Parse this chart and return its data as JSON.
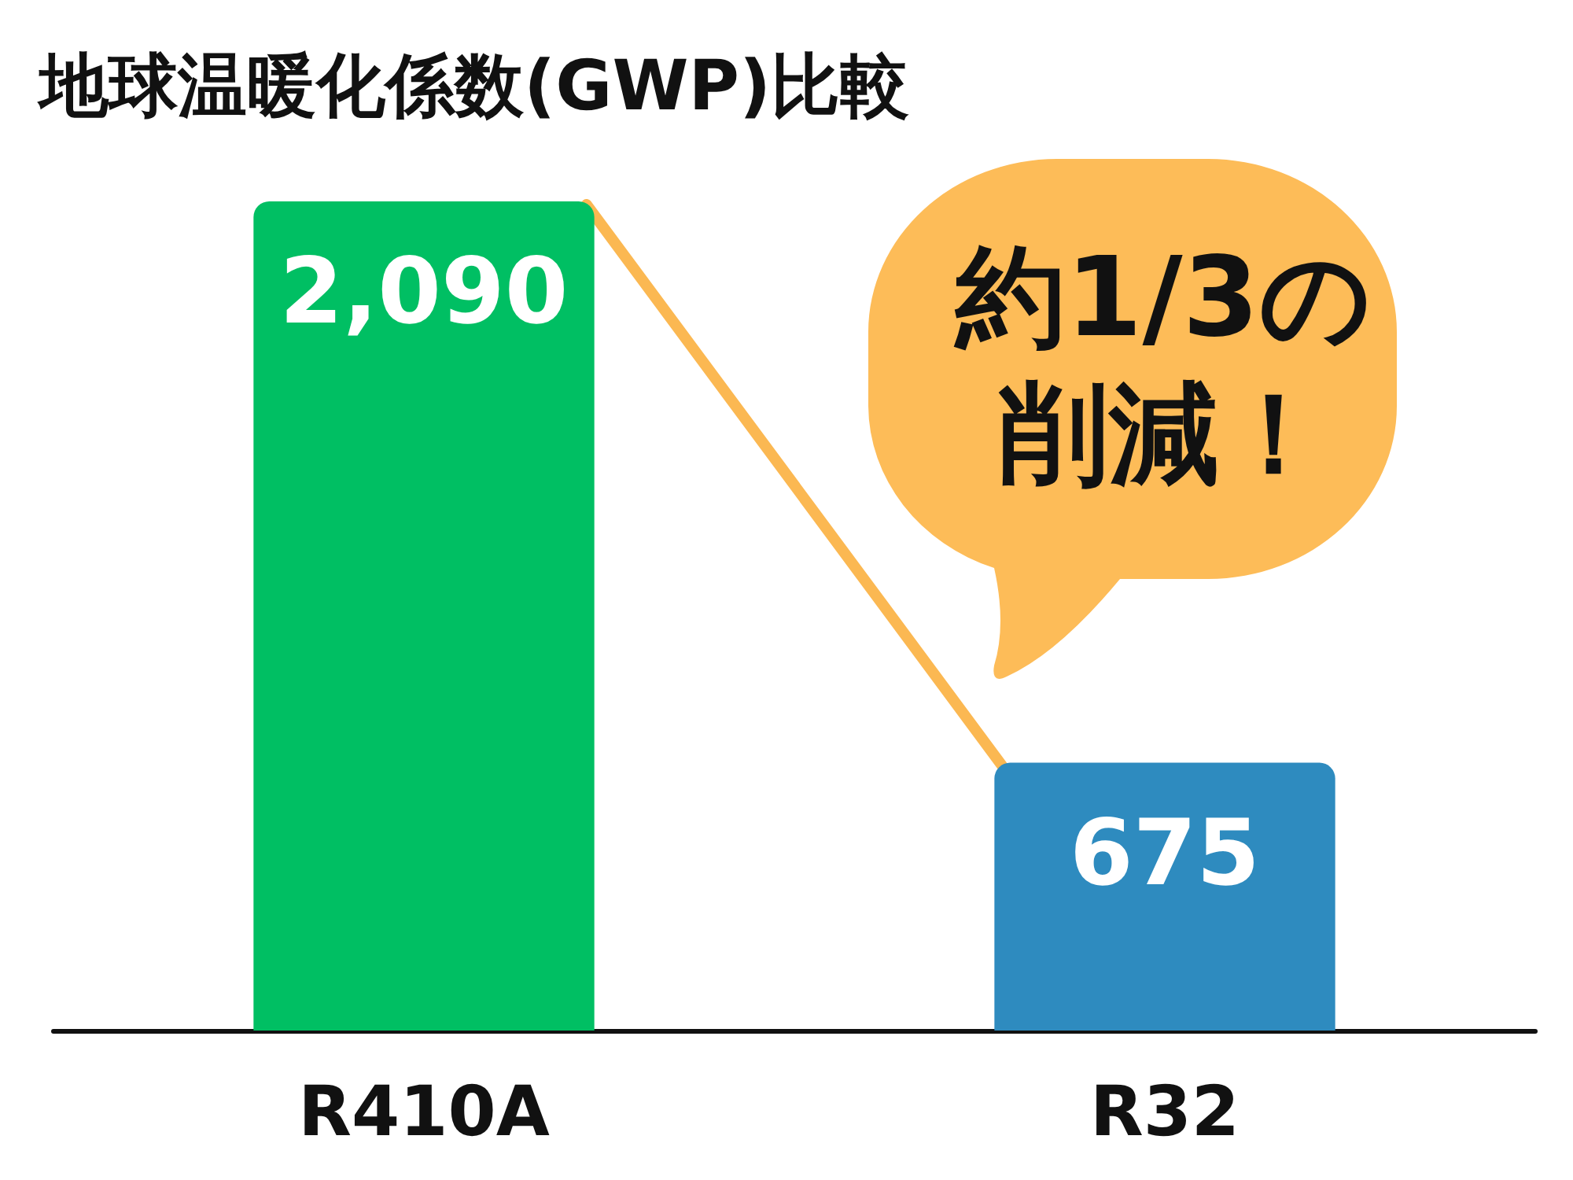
{
  "chart_data": {
    "type": "bar",
    "title": "地球温暖化係数(GWP)比較",
    "categories": [
      "R410A",
      "R32"
    ],
    "values": [
      2090,
      675
    ],
    "colors": [
      "#00bf63",
      "#2e8bbf"
    ],
    "value_labels": [
      "2,090",
      "675"
    ],
    "ylim": [
      0,
      2090
    ],
    "tick_labels": "x",
    "grid": false,
    "annotations": [
      "約1/3の削減！"
    ]
  }
}
